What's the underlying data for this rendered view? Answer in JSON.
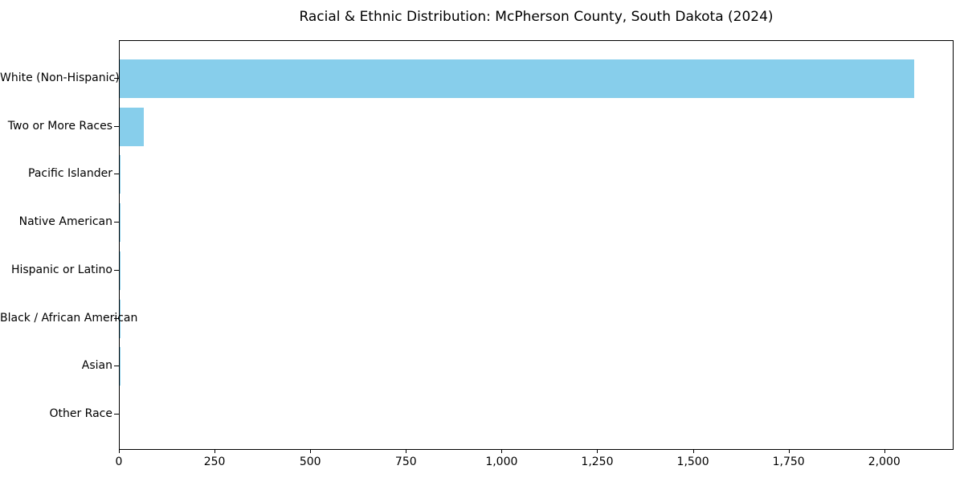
{
  "chart_data": {
    "type": "bar",
    "orientation": "horizontal",
    "title": "Racial & Ethnic Distribution: McPherson County, South Dakota (2024)",
    "categories": [
      "White (Non-Hispanic)",
      "Two or More Races",
      "Pacific Islander",
      "Native American",
      "Hispanic or Latino",
      "Black / African American",
      "Asian",
      "Other Race"
    ],
    "values": [
      2075,
      62,
      2,
      2,
      2,
      1,
      1,
      0
    ],
    "xlabel": "",
    "ylabel": "",
    "xlim": [
      0,
      2181
    ],
    "x_ticks": [
      {
        "value": 0,
        "label": "0"
      },
      {
        "value": 250,
        "label": "250"
      },
      {
        "value": 500,
        "label": "500"
      },
      {
        "value": 750,
        "label": "750"
      },
      {
        "value": 1000,
        "label": "1,000"
      },
      {
        "value": 1250,
        "label": "1,250"
      },
      {
        "value": 1500,
        "label": "1,500"
      },
      {
        "value": 1750,
        "label": "1,750"
      },
      {
        "value": 2000,
        "label": "2,000"
      }
    ],
    "bar_color": "#87CEEB",
    "axis_color": "#000000",
    "background_color": "#ffffff",
    "grid": false,
    "legend_position": "none"
  }
}
